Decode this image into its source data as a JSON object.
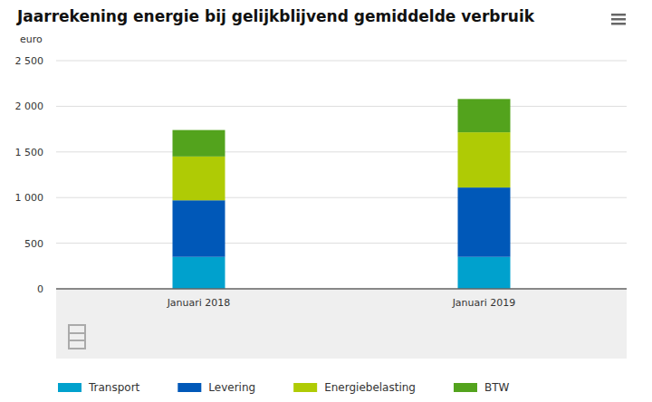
{
  "chart_data": {
    "type": "bar",
    "title": "Jaarrekening energie bij gelijkblijvend gemiddelde verbruik",
    "y_label": "euro",
    "categories": [
      "Januari 2018",
      "Januari 2019"
    ],
    "series": [
      {
        "name": "Transport",
        "color": "#00a1cd",
        "values": [
          350,
          350
        ]
      },
      {
        "name": "Levering",
        "color": "#0058b8",
        "values": [
          620,
          760
        ]
      },
      {
        "name": "Energiebelasting",
        "color": "#afcb05",
        "values": [
          480,
          605
        ]
      },
      {
        "name": "BTW",
        "color": "#53a31d",
        "values": [
          290,
          365
        ]
      }
    ],
    "ylim": [
      0,
      2500
    ],
    "yticks": [
      0,
      500,
      {
        "value": 1000,
        "label": "1 000"
      },
      {
        "value": 1500,
        "label": "1 500"
      },
      {
        "value": 2000,
        "label": "2 000"
      },
      {
        "value": 2500,
        "label": "2 500"
      }
    ],
    "stacked": true,
    "grid": true,
    "legend": "bottom"
  }
}
